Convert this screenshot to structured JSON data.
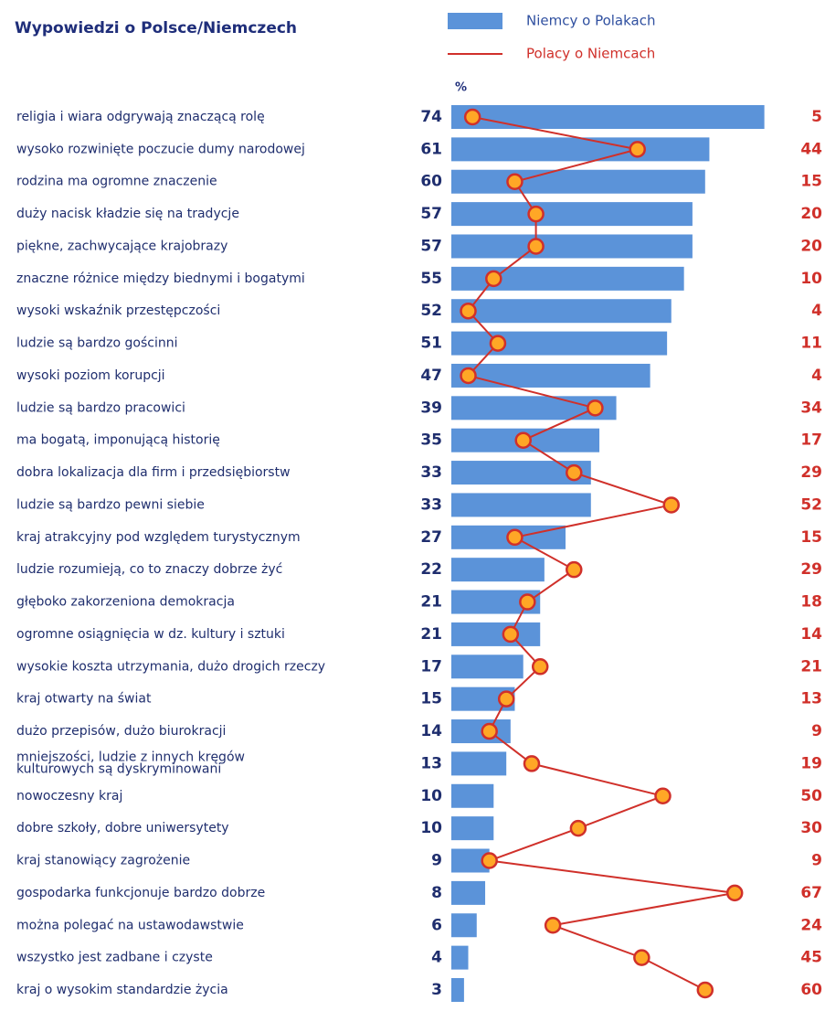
{
  "chart_data": {
    "type": "bar_line",
    "title": "Wypowiedzi o Polsce/Niemczech",
    "x_label": "%",
    "categories": [
      "religia i wiara odgrywają znaczącą rolę",
      "wysoko rozwinięte poczucie dumy narodowej",
      "rodzina ma ogromne znaczenie",
      "duży nacisk kładzie się na tradycje",
      "piękne, zachwycające krajobrazy",
      "znaczne różnice między biednymi i bogatymi",
      "wysoki wskaźnik przestępczości",
      "ludzie są bardzo gościnni",
      "wysoki poziom korupcji",
      "ludzie są bardzo pracowici",
      "ma bogatą, imponującą historię",
      "dobra lokalizacja dla firm i przedsiębiorstw",
      "ludzie są bardzo pewni siebie",
      "kraj atrakcyjny pod względem turystycznym",
      "ludzie rozumieją, co to znaczy dobrze żyć",
      "głęboko zakorzeniona demokracja",
      "ogromne osiągnięcia w dz. kultury i sztuki",
      "wysokie koszta utrzymania, dużo drogich rzeczy",
      "kraj otwarty na świat",
      "dużo przepisów, dużo biurokracji",
      "mniejszości, ludzie z innych kręgów kulturowych są dyskryminowani",
      "nowoczesny kraj",
      "dobre szkoły, dobre uniwersytety",
      "kraj stanowiący zagrożenie",
      "gospodarka funkcjonuje bardzo dobrze",
      "można polegać na ustawodawstwie",
      "wszystko jest zadbane i czyste",
      "kraj o wysokim standardzie życia"
    ],
    "series": [
      {
        "name": "Niemcy o Polakach",
        "color": "#5b93d9",
        "kind": "bar",
        "values": [
          74,
          61,
          60,
          57,
          57,
          55,
          52,
          51,
          47,
          39,
          35,
          33,
          33,
          27,
          22,
          21,
          21,
          17,
          15,
          14,
          13,
          10,
          10,
          9,
          8,
          6,
          4,
          3
        ]
      },
      {
        "name": "Polacy o Niemcach",
        "color": "#d0302a",
        "kind": "line",
        "values": [
          5,
          44,
          15,
          20,
          20,
          10,
          4,
          11,
          4,
          34,
          17,
          29,
          52,
          15,
          29,
          18,
          14,
          21,
          13,
          9,
          19,
          50,
          30,
          9,
          67,
          24,
          45,
          60
        ]
      }
    ]
  }
}
